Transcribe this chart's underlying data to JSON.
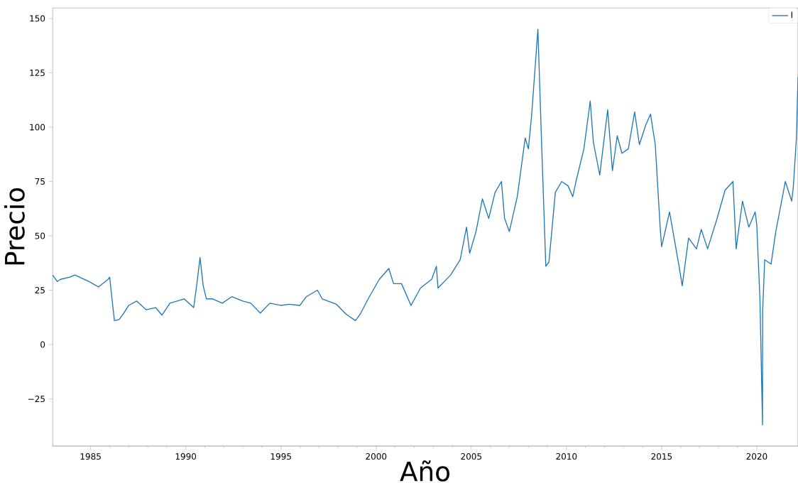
{
  "chart_data": {
    "type": "line",
    "xlabel": "Año",
    "ylabel": "Precio",
    "legend": "top right",
    "grid": false,
    "marker": "none",
    "line_style": "solid",
    "xlim": [
      "1983-01",
      "2022-03"
    ],
    "ylim": [
      -46.7,
      154.9
    ],
    "xticks": [
      "1985",
      "1990",
      "1995",
      "2000",
      "2005",
      "2010",
      "2015",
      "2020"
    ],
    "yticks": [
      {
        "value": -25,
        "label": "−25"
      },
      0,
      25,
      50,
      75,
      100,
      125,
      150
    ],
    "series": [
      {
        "name": "I",
        "color": "#1f77b4",
        "x": [
          "1983-01",
          "1983-04",
          "1983-06",
          "1983-12",
          "1984-03",
          "1984-12",
          "1985-06",
          "1985-12",
          "1986-01",
          "1986-04",
          "1986-07",
          "1986-10",
          "1987-01",
          "1987-06",
          "1987-12",
          "1988-06",
          "1988-10",
          "1989-03",
          "1989-12",
          "1990-06",
          "1990-08",
          "1990-10",
          "1990-12",
          "1991-02",
          "1991-06",
          "1991-12",
          "1992-06",
          "1993-01",
          "1993-06",
          "1993-12",
          "1994-06",
          "1995-01",
          "1995-06",
          "1996-01",
          "1996-05",
          "1996-12",
          "1997-03",
          "1997-12",
          "1998-06",
          "1998-12",
          "1999-03",
          "1999-08",
          "2000-03",
          "2000-09",
          "2000-12",
          "2001-05",
          "2001-11",
          "2002-05",
          "2002-12",
          "2003-03",
          "2003-04",
          "2003-12",
          "2004-06",
          "2004-10",
          "2004-12",
          "2005-04",
          "2005-08",
          "2005-12",
          "2006-04",
          "2006-08",
          "2006-10",
          "2007-01",
          "2007-06",
          "2007-11",
          "2008-01",
          "2008-03",
          "2008-07",
          "2008-09",
          "2008-12",
          "2009-02",
          "2009-06",
          "2009-10",
          "2010-02",
          "2010-05",
          "2010-07",
          "2010-12",
          "2011-04",
          "2011-06",
          "2011-10",
          "2012-03",
          "2012-06",
          "2012-09",
          "2012-12",
          "2013-04",
          "2013-08",
          "2013-11",
          "2014-03",
          "2014-06",
          "2014-09",
          "2014-12",
          "2015-01",
          "2015-06",
          "2015-12",
          "2016-02",
          "2016-06",
          "2016-11",
          "2017-02",
          "2017-06",
          "2017-12",
          "2018-05",
          "2018-10",
          "2018-12",
          "2019-04",
          "2019-08",
          "2019-12",
          "2020-01",
          "2020-03",
          "2020-04-20",
          "2020-04-22",
          "2020-06",
          "2020-10",
          "2021-01",
          "2021-07",
          "2021-11",
          "2021-12",
          "2022-02",
          "2022-03"
        ],
        "values": [
          32,
          29,
          30,
          31,
          32,
          29,
          26.5,
          30,
          31,
          11,
          11.5,
          14.5,
          18,
          20,
          16,
          17,
          13.5,
          19,
          21,
          17,
          28,
          40,
          27,
          21,
          21,
          19,
          22,
          20,
          19,
          14.5,
          19,
          18,
          18.5,
          18,
          22,
          25,
          21,
          18.5,
          14,
          11,
          14,
          21,
          30,
          35,
          28,
          28,
          18,
          26,
          30,
          36,
          26,
          32,
          39,
          54,
          42,
          52,
          67,
          58,
          70,
          75,
          58,
          52,
          68,
          95,
          90,
          105,
          145,
          100,
          36,
          38,
          70,
          75,
          73,
          68,
          75,
          90,
          112,
          93,
          78,
          108,
          80,
          96,
          88,
          90,
          107,
          92,
          101,
          106,
          92,
          55,
          45,
          61,
          36,
          27,
          49,
          44,
          53,
          44,
          58,
          71,
          75,
          44,
          66,
          54,
          61,
          55,
          21,
          -37,
          15,
          39,
          37,
          52,
          75,
          66,
          72,
          95,
          123
        ]
      }
    ]
  }
}
